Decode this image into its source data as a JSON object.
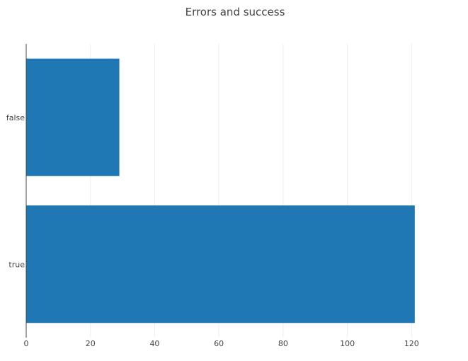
{
  "chart_data": {
    "type": "bar",
    "orientation": "horizontal",
    "title": "Errors and success",
    "xlabel": "",
    "ylabel": "",
    "categories": [
      "false",
      "true"
    ],
    "values": [
      29,
      121
    ],
    "xlim": [
      0,
      125
    ],
    "x_ticks": [
      0,
      20,
      40,
      60,
      80,
      100,
      120
    ],
    "grid": true,
    "legend": "none",
    "bar_color": "#1f77b4"
  }
}
